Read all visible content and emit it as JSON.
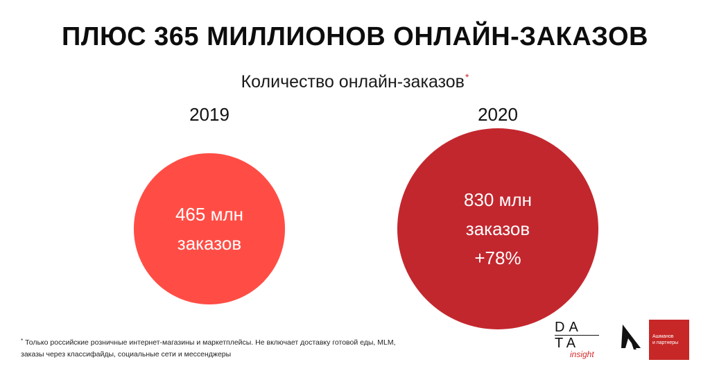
{
  "header": {
    "title": "ПЛЮС 365 МИЛЛИОНОВ ОНЛАЙН-ЗАКАЗОВ",
    "subtitle": "Количество онлайн-заказов",
    "subtitle_mark": "*"
  },
  "chart_data": {
    "type": "bubble",
    "title": "Количество онлайн-заказов",
    "unit": "млн заказов",
    "points": [
      {
        "year": "2019",
        "value": 465,
        "label_line1": "465 млн",
        "label_line2": "заказов",
        "label_line3": "",
        "color": "#ff4d45"
      },
      {
        "year": "2020",
        "value": 830,
        "label_line1": "830 млн",
        "label_line2": "заказов",
        "label_line3": "+78%",
        "color": "#c3272e"
      }
    ]
  },
  "footnote": {
    "mark": "*",
    "line1": "Только российские розничные интернет-магазины и маркетплейсы. Не включает доставку готовой еды, MLM,",
    "line2": "заказы через классифайды, социальные сети и мессенджеры"
  },
  "logos": {
    "data_row1": "DA",
    "data_row2": "TA",
    "data_insight": "insight",
    "ashmanov_line1": "Ашманов",
    "ashmanov_line2": "и партнеры"
  }
}
